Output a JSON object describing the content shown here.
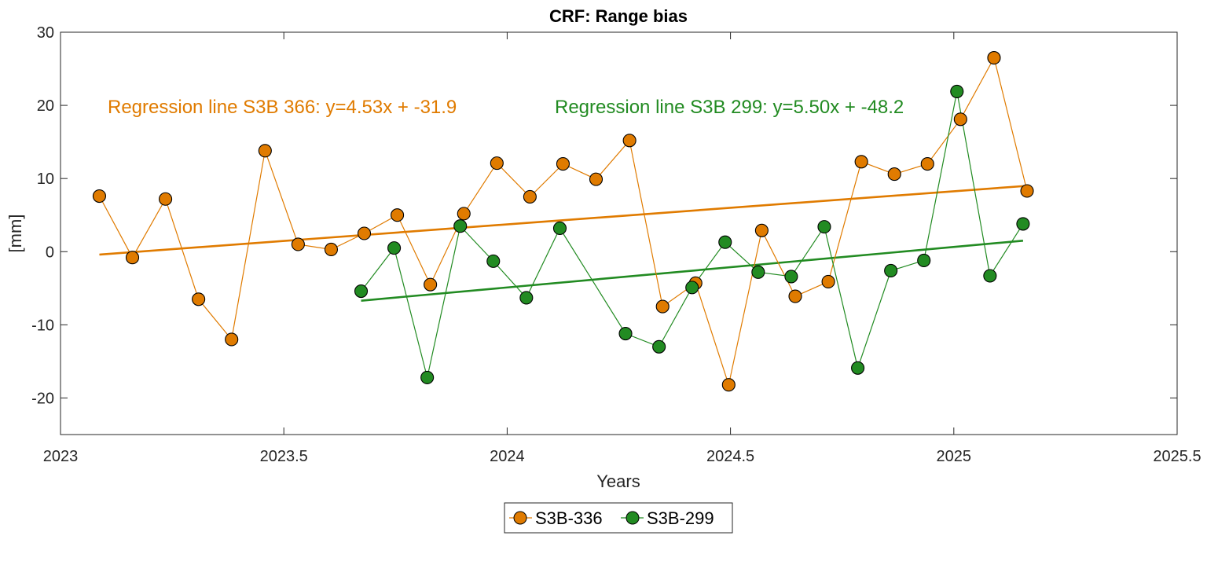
{
  "chart_data": {
    "type": "line",
    "title": "CRF: Range bias",
    "xlabel": "Years",
    "ylabel": "[mm]",
    "xlim": [
      2023,
      2025.5
    ],
    "ylim": [
      -25,
      30
    ],
    "xticks": [
      2023,
      2023.5,
      2024,
      2024.5,
      2025,
      2025.5
    ],
    "xtick_labels": [
      "2023",
      "2023.5",
      "2024",
      "2024.5",
      "2025",
      "2025.5"
    ],
    "yticks": [
      -20,
      -10,
      0,
      10,
      20,
      30
    ],
    "ytick_labels": [
      "-20",
      "-10",
      "0",
      "10",
      "20",
      "30"
    ],
    "grid": false,
    "legend_position": "bottom-center",
    "series": [
      {
        "name": "S3B-336",
        "color": "#e07b00",
        "x": [
          2023.087,
          2023.161,
          2023.235,
          2023.309,
          2023.383,
          2023.458,
          2023.532,
          2023.606,
          2023.68,
          2023.754,
          2023.828,
          2023.903,
          2023.977,
          2024.051,
          2024.125,
          2024.199,
          2024.274,
          2024.348,
          2024.422,
          2024.496,
          2024.57,
          2024.645,
          2024.719,
          2024.793,
          2024.867,
          2024.941,
          2025.015,
          2025.09,
          2025.164
        ],
        "y": [
          7.6,
          -0.8,
          7.2,
          -6.5,
          -12.0,
          13.8,
          1.0,
          0.3,
          2.5,
          5.0,
          -4.5,
          5.2,
          12.1,
          7.5,
          12.0,
          9.9,
          15.2,
          -7.5,
          -4.3,
          -18.2,
          2.9,
          -6.1,
          -4.1,
          12.3,
          10.6,
          12.0,
          18.1,
          26.5,
          8.3
        ]
      },
      {
        "name": "S3B-299",
        "color": "#228b22",
        "x": [
          2023.673,
          2023.747,
          2023.821,
          2023.895,
          2023.969,
          2024.043,
          2024.118,
          2024.265,
          2024.34,
          2024.414,
          2024.488,
          2024.562,
          2024.636,
          2024.71,
          2024.785,
          2024.859,
          2024.933,
          2025.007,
          2025.081,
          2025.155
        ],
        "y": [
          -5.4,
          0.5,
          -17.2,
          3.5,
          -1.3,
          -6.3,
          3.2,
          -11.2,
          -13.0,
          -4.9,
          1.3,
          -2.8,
          -3.4,
          3.4,
          -15.9,
          -2.6,
          -1.2,
          21.9,
          -3.3,
          3.8
        ]
      }
    ],
    "regressions": [
      {
        "name": "Regression line S3B 366",
        "label": "Regression line S3B 366: y=4.53x + -31.9",
        "color": "#e07b00",
        "x": [
          2023.087,
          2025.164
        ],
        "y": [
          -0.4,
          9.0
        ]
      },
      {
        "name": "Regression line S3B 299",
        "label": "Regression line S3B 299: y=5.50x + -48.2",
        "color": "#228b22",
        "x": [
          2023.673,
          2025.155
        ],
        "y": [
          -6.7,
          1.5
        ]
      }
    ]
  }
}
